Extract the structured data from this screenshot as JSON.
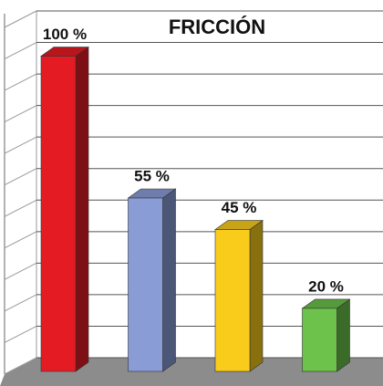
{
  "chart_data": {
    "type": "bar3d",
    "title": "FRICCIÓN",
    "categories": [
      null,
      null,
      null,
      null
    ],
    "values": [
      100,
      55,
      45,
      20
    ],
    "value_labels": [
      "100 %",
      "55 %",
      "45 %",
      "20 %"
    ],
    "colors": [
      "#e51b24",
      "#8a9cd6",
      "#f9cc1c",
      "#6cc24a"
    ],
    "ylim": [
      0,
      110
    ],
    "yticks": [
      0,
      10,
      20,
      30,
      40,
      50,
      60,
      70,
      80,
      90,
      100,
      110
    ],
    "grid": true
  }
}
